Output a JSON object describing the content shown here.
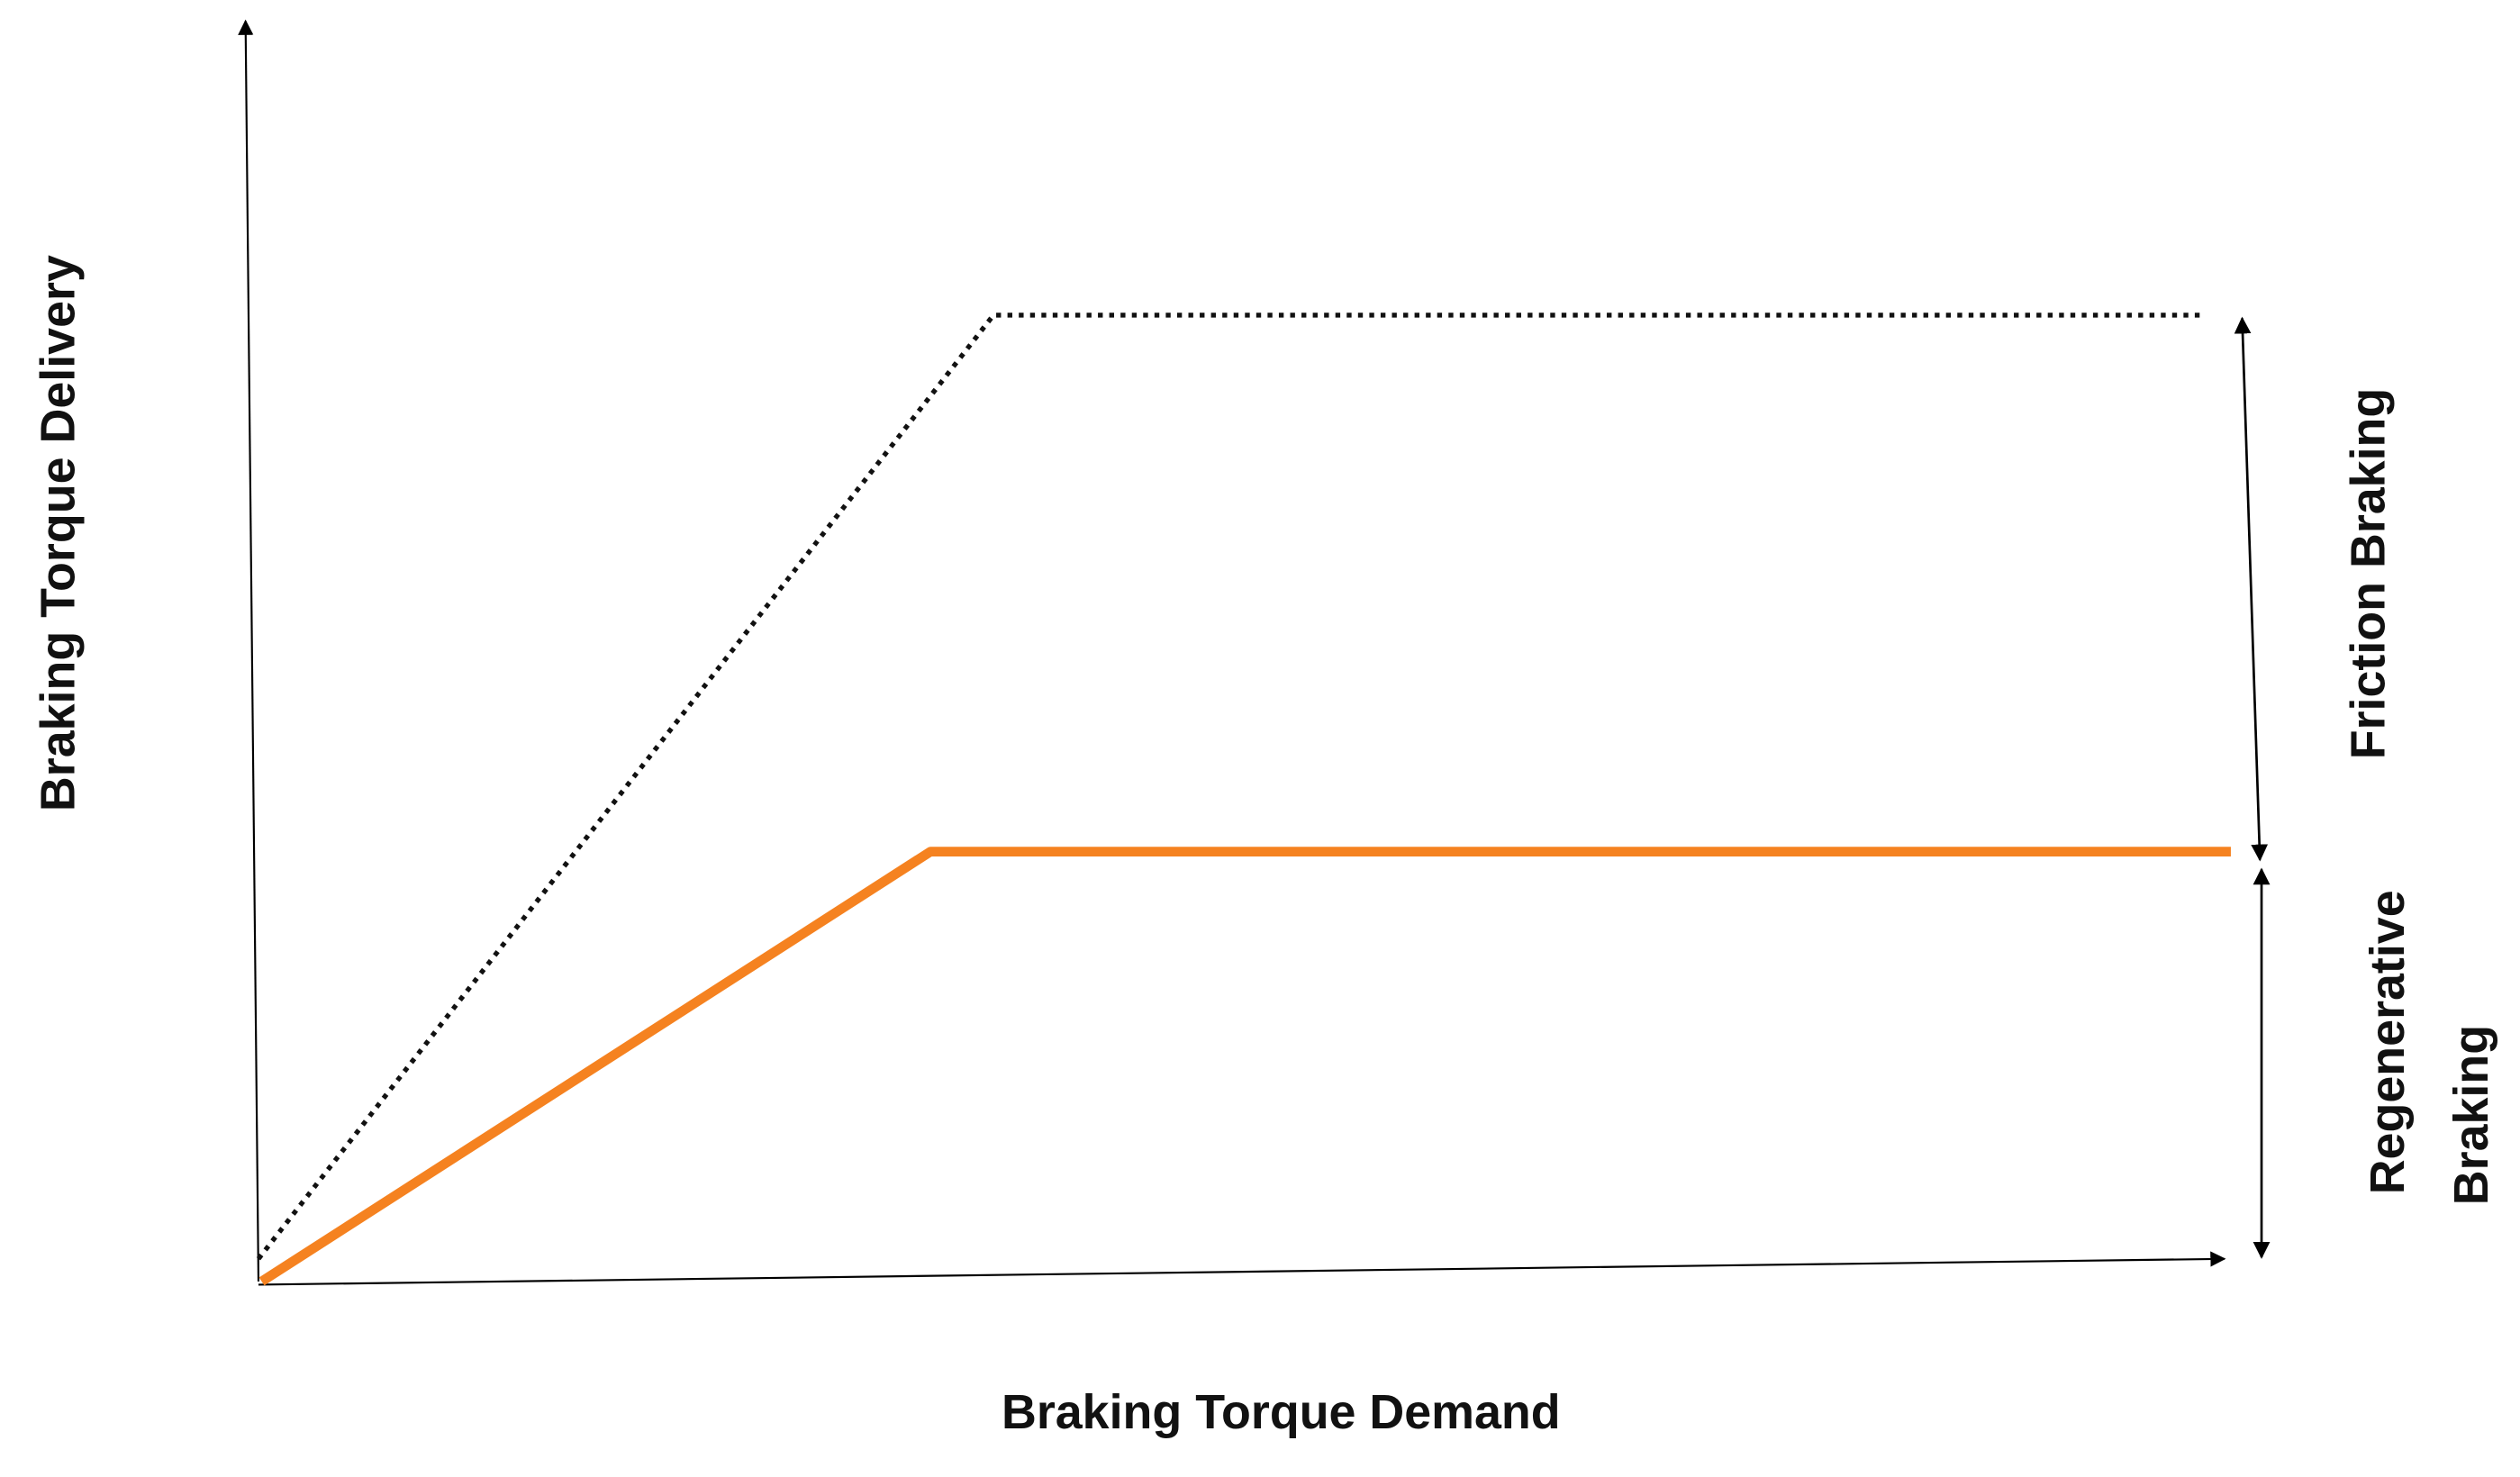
{
  "axes": {
    "y_label": "Braking Torque Delivery",
    "x_label": "Braking Torque Demand"
  },
  "annotations": {
    "friction": "Friction Braking",
    "regenerative": [
      "Regenerative",
      "Braking"
    ]
  }
}
